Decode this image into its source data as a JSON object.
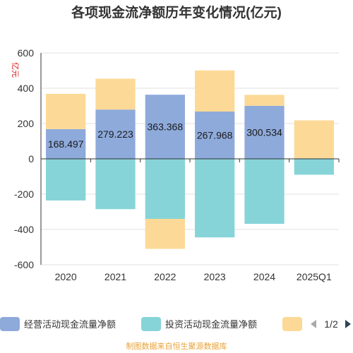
{
  "chart_data": {
    "type": "bar",
    "stacked": true,
    "title": "各项现金流净额历年变化情况(亿元)",
    "ylabel": "亿元",
    "categories": [
      "2020",
      "2021",
      "2022",
      "2023",
      "2024",
      "2025Q1"
    ],
    "ylim": [
      -600,
      600
    ],
    "yticks": [
      -600,
      -400,
      -200,
      0,
      200,
      400,
      600
    ],
    "grid": true,
    "series": [
      {
        "name": "经营活动现金流量净额",
        "color": "#8eaadb",
        "values": [
          168.497,
          279.223,
          363.368,
          267.968,
          300.534,
          3.0
        ],
        "labels": [
          "168.497",
          "279.223",
          "363.368",
          "267.968",
          "300.534",
          ""
        ]
      },
      {
        "name": "投资活动现金流量净额",
        "color": "#86d4d8",
        "values": [
          -236,
          -285,
          -340,
          -445,
          -368,
          -90
        ],
        "labels": [
          "",
          "",
          "",
          "",
          "",
          ""
        ]
      },
      {
        "name": "",
        "color": "#fdd997",
        "values": [
          200,
          175,
          -170,
          233,
          62,
          215
        ],
        "labels": [
          "",
          "",
          "",
          "",
          "",
          ""
        ]
      }
    ],
    "legend": {
      "position": "bottom",
      "page": "1/2"
    }
  },
  "source": "制图数据来自恒生聚源数据库"
}
